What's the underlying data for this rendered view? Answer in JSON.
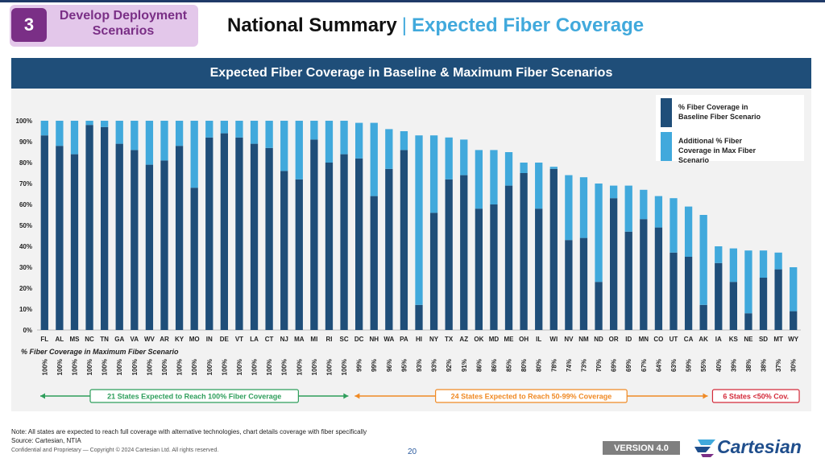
{
  "header": {
    "step_number": "3",
    "step_label_line1": "Develop Deployment",
    "step_label_line2": "Scenarios",
    "title_main": "National Summary",
    "title_separator": "|",
    "title_sub": "Expected Fiber Coverage"
  },
  "chart_data": {
    "type": "bar",
    "stacked": true,
    "title": "Expected Fiber Coverage in Baseline & Maximum Fiber Scenarios",
    "categories": [
      "FL",
      "AL",
      "MS",
      "NC",
      "TN",
      "GA",
      "VA",
      "WV",
      "AR",
      "KY",
      "MO",
      "IN",
      "DE",
      "VT",
      "LA",
      "CT",
      "NJ",
      "MA",
      "MI",
      "RI",
      "SC",
      "DC",
      "NH",
      "WA",
      "PA",
      "HI",
      "NY",
      "TX",
      "AZ",
      "OK",
      "MD",
      "ME",
      "OH",
      "IL",
      "WI",
      "NV",
      "NM",
      "ND",
      "OR",
      "ID",
      "MN",
      "CO",
      "UT",
      "CA",
      "AK",
      "IA",
      "KS",
      "NE",
      "SD",
      "MT",
      "WY"
    ],
    "series": [
      {
        "name": "% Fiber Coverage in Baseline Fiber Scenario",
        "color": "#1f4e79",
        "values": [
          93,
          88,
          84,
          98,
          97,
          89,
          86,
          79,
          81,
          88,
          68,
          92,
          94,
          92,
          89,
          87,
          76,
          72,
          91,
          80,
          84,
          82,
          64,
          77,
          86,
          12,
          56,
          72,
          74,
          58,
          60,
          69,
          75,
          58,
          77,
          43,
          44,
          23,
          63,
          47,
          53,
          49,
          37,
          35,
          12,
          32,
          23,
          8,
          25,
          29,
          9
        ]
      },
      {
        "name": "Additional % Fiber Coverage in Max Fiber Scenario",
        "color": "#41a9dc",
        "values": [
          7,
          12,
          16,
          2,
          3,
          11,
          14,
          21,
          19,
          12,
          32,
          8,
          6,
          8,
          11,
          13,
          24,
          28,
          9,
          20,
          16,
          17,
          35,
          19,
          9,
          81,
          37,
          20,
          17,
          28,
          26,
          16,
          5,
          22,
          1,
          31,
          29,
          47,
          6,
          22,
          14,
          15,
          26,
          24,
          43,
          8,
          16,
          30,
          13,
          8,
          21
        ]
      }
    ],
    "max_scenario_labels": [
      "100%",
      "100%",
      "100%",
      "100%",
      "100%",
      "100%",
      "100%",
      "100%",
      "100%",
      "100%",
      "100%",
      "100%",
      "100%",
      "100%",
      "100%",
      "100%",
      "100%",
      "100%",
      "100%",
      "100%",
      "100%",
      "99%",
      "99%",
      "96%",
      "95%",
      "93%",
      "93%",
      "92%",
      "91%",
      "86%",
      "86%",
      "85%",
      "80%",
      "80%",
      "78%",
      "74%",
      "73%",
      "70%",
      "69%",
      "69%",
      "67%",
      "64%",
      "63%",
      "59%",
      "55%",
      "40%",
      "39%",
      "38%",
      "38%",
      "37%",
      "30%"
    ],
    "row_label": "% Fiber Coverage in Maximum Fiber Scenario",
    "ylim": [
      0,
      100
    ],
    "yticks": [
      "0%",
      "10%",
      "20%",
      "30%",
      "40%",
      "50%",
      "60%",
      "70%",
      "80%",
      "90%",
      "100%"
    ],
    "legend": "top-right",
    "grid": false,
    "groups": [
      {
        "label": "21 States Expected to Reach 100% Fiber Coverage",
        "color": "#2e9e5b"
      },
      {
        "label": "24 States Expected to Reach 50-99% Coverage",
        "color": "#f08a24"
      },
      {
        "label": "6 States <50% Cov.",
        "color": "#d42a3a"
      }
    ]
  },
  "footer": {
    "note": "Note: All states are expected to reach full coverage with alternative technologies, chart details coverage with fiber specifically",
    "source": "Source: Cartesian, NTIA",
    "confidential": "Confidential and Proprietary — Copyright © 2024 Cartesian Ltd. All rights reserved.",
    "page": "20",
    "version": "VERSION 4.0",
    "logo_text": "Cartesian"
  },
  "colors": {
    "navy": "#1f4e79",
    "light_blue": "#41a9dc",
    "purple": "#7a2f86"
  }
}
